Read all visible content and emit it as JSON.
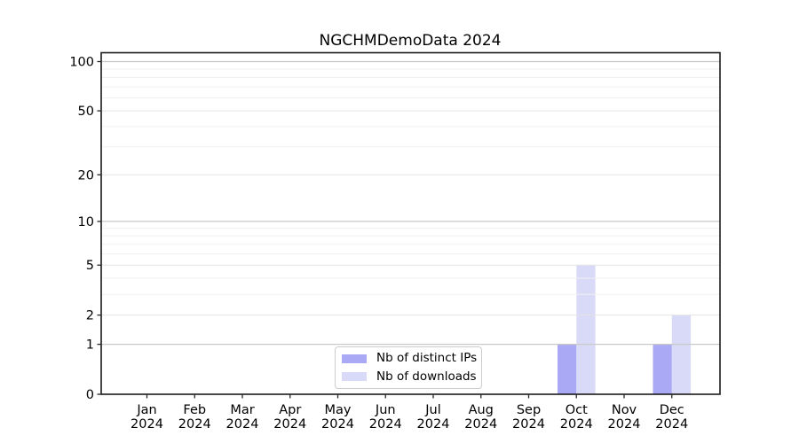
{
  "chart_data": {
    "type": "bar",
    "title": "NGCHMDemoData 2024",
    "categories": [
      "Jan",
      "Feb",
      "Mar",
      "Apr",
      "May",
      "Jun",
      "Jul",
      "Aug",
      "Sep",
      "Oct",
      "Nov",
      "Dec"
    ],
    "category_year": "2024",
    "series": [
      {
        "name": "Nb of distinct IPs",
        "color": "#a9a9f5",
        "values": [
          0,
          0,
          0,
          0,
          0,
          0,
          0,
          0,
          0,
          1,
          0,
          1
        ]
      },
      {
        "name": "Nb of downloads",
        "color": "#d9d9f8",
        "values": [
          0,
          0,
          0,
          0,
          0,
          0,
          0,
          0,
          0,
          5,
          0,
          2
        ]
      }
    ],
    "y_axis": {
      "scale": "log1p",
      "ylim": [
        0,
        100
      ],
      "ticks": [
        0,
        1,
        2,
        5,
        10,
        20,
        50,
        100
      ],
      "decade_ticks": [
        1,
        10,
        100
      ],
      "minor_ticks": [
        3,
        4,
        6,
        7,
        8,
        9,
        30,
        40,
        60,
        70,
        80,
        90
      ]
    },
    "grid": "horizontal",
    "legend_position": "lower-center-inside"
  },
  "colors": {
    "decade_grid": "#c9c9c9",
    "mid_grid": "#e4e4e4",
    "minor_grid": "#f0f0f0",
    "spine": "#1a1a1a",
    "tick": "#262626",
    "text": "#000000",
    "background": "#ffffff"
  }
}
